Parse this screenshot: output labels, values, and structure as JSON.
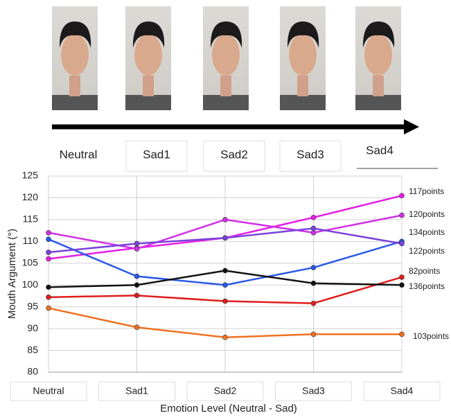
{
  "image_strip": {
    "labels": [
      "Neutral",
      "Sad1",
      "Sad2",
      "Sad3",
      "Sad4"
    ]
  },
  "chart_data": {
    "type": "line",
    "x_label": "Emotion Level (Neutral - Sad)",
    "y_label": "Mouth Argument (°)",
    "categories": [
      "Neutral",
      "Sad1",
      "Sad2",
      "Sad3",
      "Sad4"
    ],
    "series": [
      {
        "name": "117points",
        "color": "#e51ee5",
        "values": [
          106,
          108.5,
          110.8,
          115.5,
          120.5
        ]
      },
      {
        "name": "120points",
        "color": "#d42fe8",
        "values": [
          112,
          108.3,
          115,
          112,
          116
        ]
      },
      {
        "name": "134points",
        "color": "#2a58e8",
        "values": [
          110.5,
          102,
          100,
          104,
          110
        ]
      },
      {
        "name": "122points",
        "color": "#7a42dc",
        "values": [
          107.5,
          109.5,
          110.8,
          113,
          109.5
        ]
      },
      {
        "name": "82points",
        "color": "#e01c1c",
        "values": [
          97.2,
          97.6,
          96.3,
          95.8,
          101.8
        ]
      },
      {
        "name": "136points",
        "color": "#111111",
        "values": [
          99.5,
          100,
          103.3,
          100.4,
          100
        ]
      },
      {
        "name": "103points",
        "color": "#f0701e",
        "values": [
          94.7,
          90.3,
          88,
          88.7,
          88.7
        ]
      }
    ],
    "ylim": [
      80,
      125
    ],
    "yticks": [
      80,
      85,
      90,
      95,
      100,
      105,
      110,
      115,
      120,
      125
    ],
    "grid": true
  }
}
